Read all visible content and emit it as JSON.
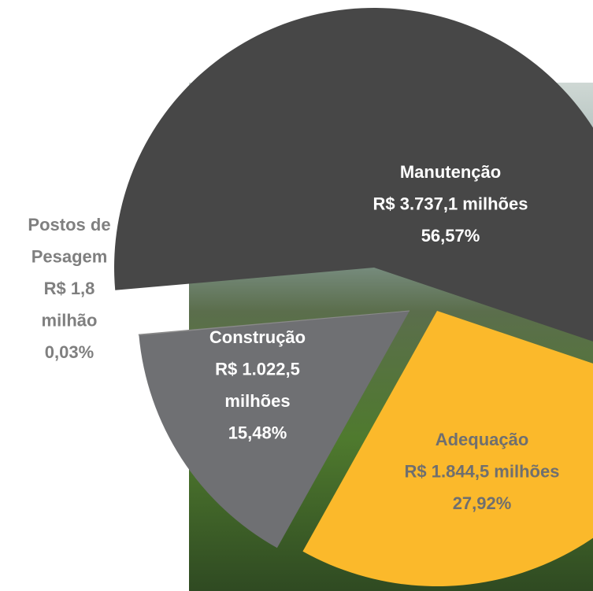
{
  "chart_data": {
    "type": "pie",
    "slices": [
      {
        "name_lines": [
          "Manutenção"
        ],
        "amount_lines": [
          "R$ 3.737,1 milhões"
        ],
        "value": 56.57,
        "value_label": "56,57%",
        "color": "#474747",
        "text_color": "#ffffff"
      },
      {
        "name_lines": [
          "Adequação"
        ],
        "amount_lines": [
          "R$ 1.844,5 milhões"
        ],
        "value": 27.92,
        "value_label": "27,92%",
        "color": "#fbb92b",
        "text_color": "#6f6f6f"
      },
      {
        "name_lines": [
          "Construção"
        ],
        "amount_lines": [
          "R$ 1.022,5",
          "milhões"
        ],
        "value": 15.48,
        "value_label": "15,48%",
        "color": "#6f7073",
        "text_color": "#ffffff"
      },
      {
        "name_lines": [
          "Postos de",
          "Pesagem"
        ],
        "amount_lines": [
          "R$ 1,8",
          "milhão"
        ],
        "value": 0.03,
        "value_label": "0,03%",
        "color": "#8a8a8a",
        "text_color": "#7f7f7f"
      }
    ]
  }
}
